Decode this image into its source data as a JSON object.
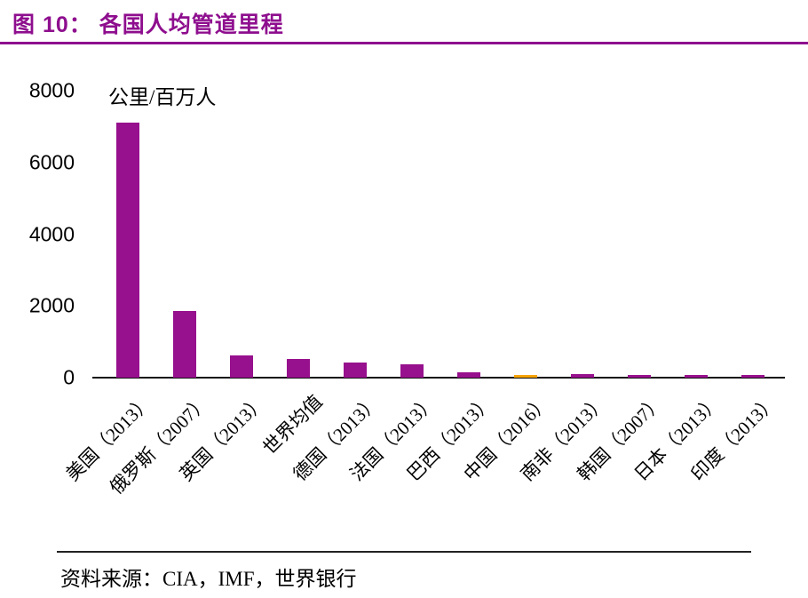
{
  "header": {
    "title": "图 10：  各国人均管道里程"
  },
  "footer": {
    "source": "资料来源：CIA，IMF，世界银行"
  },
  "colors": {
    "accent_purple": "#8E0E8E",
    "bar_purple": "#97108D",
    "highlight_orange": "#F5A300",
    "axis_black": "#111111"
  },
  "chart_data": {
    "type": "bar",
    "title": "各国人均管道里程",
    "xlabel": "",
    "ylabel": "公里/百万人",
    "ylim": [
      0,
      8000
    ],
    "yticks": [
      0,
      2000,
      4000,
      6000,
      8000
    ],
    "grid": false,
    "legend": "none",
    "categories": [
      "美国（2013）",
      "俄罗斯（2007）",
      "英国（2013）",
      "世界均值",
      "德国（2013）",
      "法国（2013）",
      "巴西（2013）",
      "中国（2016）",
      "南非（2013）",
      "韩国（2007）",
      "日本（2013）",
      "印度（2013）"
    ],
    "values": [
      7100,
      1850,
      620,
      520,
      430,
      360,
      140,
      60,
      90,
      70,
      50,
      40
    ],
    "bar_colors": [
      "#97108D",
      "#97108D",
      "#97108D",
      "#97108D",
      "#97108D",
      "#97108D",
      "#97108D",
      "#F5A300",
      "#97108D",
      "#97108D",
      "#97108D",
      "#97108D"
    ]
  }
}
